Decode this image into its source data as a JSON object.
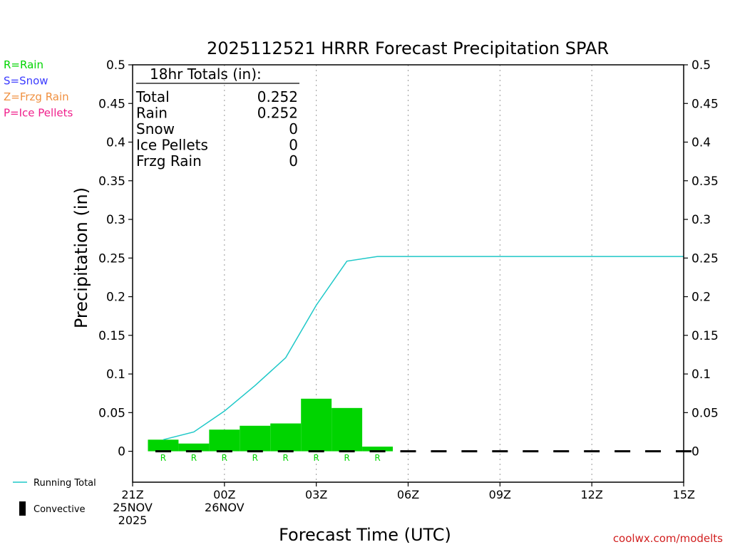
{
  "chart_data": {
    "type": "bar",
    "title": "2025112521 HRRR Forecast Precipitation SPAR",
    "xlabel": "Forecast Time (UTC)",
    "ylabel": "Precipitation (in)",
    "ylim": [
      -0.04,
      0.5
    ],
    "xlim": [
      0,
      18
    ],
    "yticks": [
      0,
      0.05,
      0.1,
      0.15,
      0.2,
      0.25,
      0.3,
      0.35,
      0.4,
      0.45,
      0.5
    ],
    "ytick_labels": [
      "0",
      "0.05",
      "0.1",
      "0.15",
      "0.2",
      "0.25",
      "0.3",
      "0.35",
      "0.4",
      "0.45",
      "0.5"
    ],
    "xticks": [
      {
        "x": 0,
        "lines": [
          "21Z",
          "25NOV",
          "2025"
        ]
      },
      {
        "x": 3,
        "lines": [
          "00Z",
          "26NOV"
        ]
      },
      {
        "x": 6,
        "lines": [
          "03Z"
        ]
      },
      {
        "x": 9,
        "lines": [
          "06Z"
        ]
      },
      {
        "x": 12,
        "lines": [
          "09Z"
        ]
      },
      {
        "x": 15,
        "lines": [
          "12Z"
        ]
      },
      {
        "x": 18,
        "lines": [
          "15Z"
        ]
      }
    ],
    "grid": "vertical dotted at each 3-hour tick",
    "colors": {
      "rain": "#00d400",
      "running_total": "#1ec8c8",
      "convective": "#000000"
    },
    "series": [
      {
        "name": "Hourly precipitation",
        "kind": "bar",
        "x_start": [
          0.5,
          1.5,
          2.5,
          3.5,
          4.5,
          5.5,
          6.5,
          7.5
        ],
        "values": [
          0.015,
          0.01,
          0.028,
          0.033,
          0.036,
          0.068,
          0.056,
          0.006
        ],
        "type_labels": [
          "R",
          "R",
          "R",
          "R",
          "R",
          "R",
          "R",
          "R"
        ]
      },
      {
        "name": "Running Total",
        "kind": "line",
        "x": [
          1,
          2,
          3,
          4,
          5,
          6,
          7,
          8,
          9,
          10,
          11,
          12,
          13,
          14,
          15,
          16,
          17,
          18
        ],
        "values": [
          0.015,
          0.025,
          0.052,
          0.085,
          0.121,
          0.189,
          0.246,
          0.252,
          0.252,
          0.252,
          0.252,
          0.252,
          0.252,
          0.252,
          0.252,
          0.252,
          0.252,
          0.252
        ]
      },
      {
        "name": "Convective",
        "kind": "bar",
        "x_start": [
          0.5,
          1.5,
          2.5,
          3.5,
          4.5,
          5.5,
          6.5,
          7.5,
          8.5,
          9.5,
          10.5,
          11.5,
          12.5,
          13.5,
          14.5,
          15.5,
          16.5,
          17.5
        ],
        "values": [
          0,
          0,
          0,
          0,
          0,
          0,
          0,
          0,
          0,
          0,
          0,
          0,
          0,
          0,
          0,
          0,
          0,
          0
        ]
      }
    ],
    "totals_box": {
      "header": "18hr Totals (in):",
      "rows": [
        {
          "label": "Total",
          "value": "0.252"
        },
        {
          "label": "Rain",
          "value": "0.252"
        },
        {
          "label": "Snow",
          "value": "0"
        },
        {
          "label": "Ice Pellets",
          "value": "0"
        },
        {
          "label": "Frzg Rain",
          "value": "0"
        }
      ]
    },
    "type_key": [
      {
        "text": "R=Rain",
        "color": "#00d400"
      },
      {
        "text": "S=Snow",
        "color": "#3c3cff"
      },
      {
        "text": "Z=Frzg Rain",
        "color": "#f09040"
      },
      {
        "text": "P=Ice Pellets",
        "color": "#f0208c"
      }
    ],
    "legend": [
      {
        "label": "Running Total",
        "symbol": "line"
      },
      {
        "label": "Convective",
        "symbol": "bar"
      }
    ],
    "credit": "coolwx.com/modelts",
    "credit_color": "#d22020"
  }
}
